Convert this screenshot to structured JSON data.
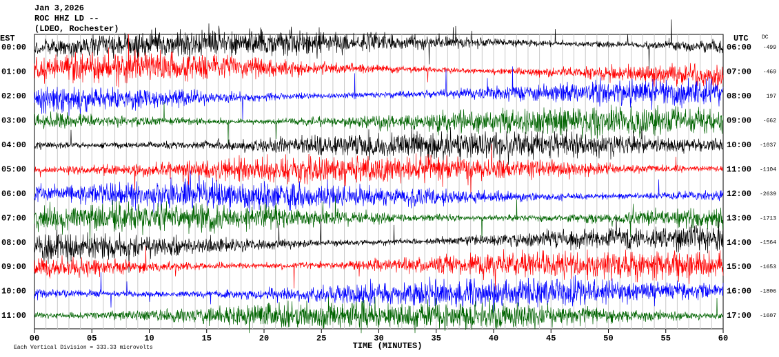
{
  "chart_data": {
    "type": "helicorder",
    "title_lines": [
      "Jan 3,2026",
      "ROC HHZ LD --",
      "(LDEO, Rochester)"
    ],
    "left_axis_title": "EST",
    "right_axis_title": "UTC",
    "dc_title": "DC",
    "xlabel": "TIME (MINUTES)",
    "scale_note": "Each Vertical Division =  333.33 microvolts",
    "xlim": [
      0,
      60
    ],
    "xticks": [
      {
        "value": 0,
        "label": "00"
      },
      {
        "value": 5,
        "label": "05"
      },
      10,
      15,
      20,
      25,
      30,
      35,
      40,
      45,
      50,
      55,
      60
    ],
    "trace_colors": [
      "#000000",
      "#ff0000",
      "#0000ff",
      "#006400"
    ],
    "rows": [
      {
        "est": "00:00",
        "utc": "06:00",
        "dc": -499
      },
      {
        "est": "01:00",
        "utc": "07:00",
        "dc": -469
      },
      {
        "est": "02:00",
        "utc": "08:00",
        "dc": 197
      },
      {
        "est": "03:00",
        "utc": "09:00",
        "dc": -662
      },
      {
        "est": "04:00",
        "utc": "10:00",
        "dc": -1037
      },
      {
        "est": "05:00",
        "utc": "11:00",
        "dc": -1104
      },
      {
        "est": "06:00",
        "utc": "12:00",
        "dc": -2639
      },
      {
        "est": "07:00",
        "utc": "13:00",
        "dc": -1713
      },
      {
        "est": "08:00",
        "utc": "14:00",
        "dc": -1564
      },
      {
        "est": "09:00",
        "utc": "15:00",
        "dc": -1653
      },
      {
        "est": "10:00",
        "utc": "16:00",
        "dc": -1806
      },
      {
        "est": "11:00",
        "utc": "17:00",
        "dc": -1607
      }
    ]
  }
}
